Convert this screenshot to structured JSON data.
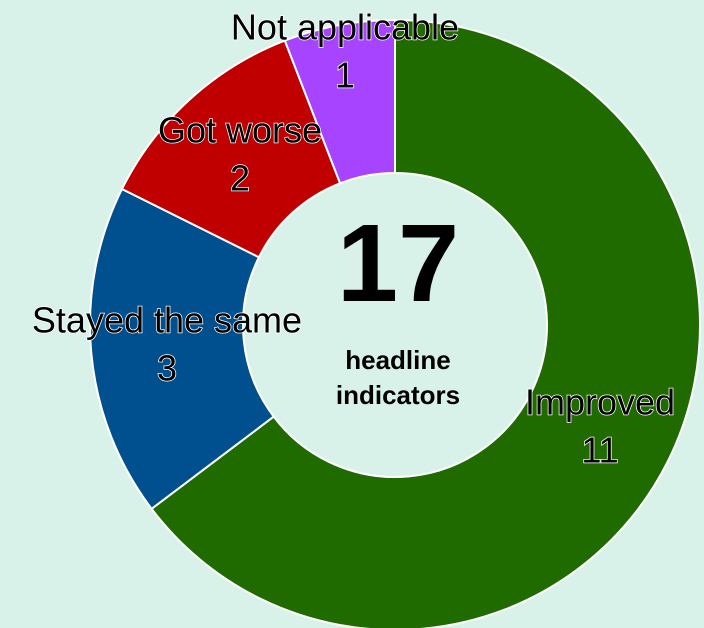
{
  "chart_data": {
    "type": "donut",
    "categories": [
      "Improved",
      "Stayed the same",
      "Got worse",
      "Not applicable"
    ],
    "values": [
      11,
      3,
      2,
      1
    ],
    "colors": [
      "#1f6b00",
      "#00508f",
      "#c00000",
      "#a644ff"
    ],
    "center_value": "17",
    "center_label": [
      "headline",
      "indicators"
    ]
  }
}
